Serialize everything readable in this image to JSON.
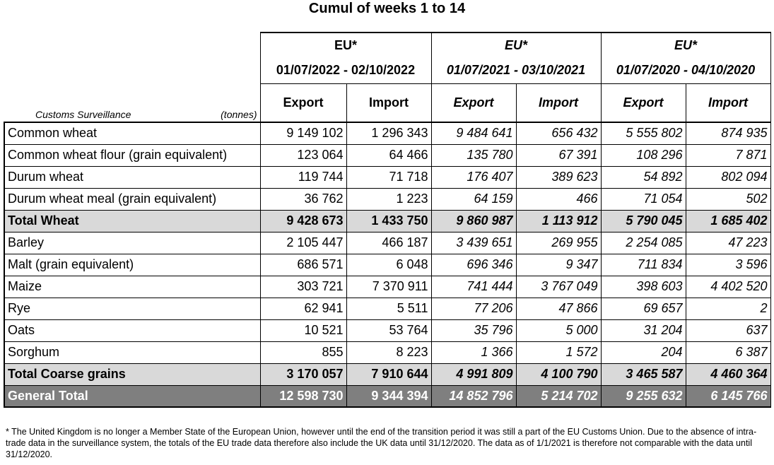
{
  "title": "Cumul of weeks 1 to 14",
  "header": {
    "corner_label": "Customs Surveillance",
    "corner_unit": "(tonnes)",
    "groups": [
      {
        "region": "EU*",
        "period": "01/07/2022 - 02/10/2022"
      },
      {
        "region": "EU*",
        "period": "01/07/2021 - 03/10/2021"
      },
      {
        "region": "EU*",
        "period": "01/07/2020 - 04/10/2020"
      }
    ],
    "columns": [
      "Export",
      "Import",
      "Export",
      "Import",
      "Export",
      "Import"
    ]
  },
  "rows": [
    {
      "label": "Common wheat",
      "values": [
        "9 149 102",
        "1 296 343",
        "9 484 641",
        "656 432",
        "5 555 802",
        "874 935"
      ]
    },
    {
      "label": "Common wheat flour (grain equivalent)",
      "values": [
        "123 064",
        "64 466",
        "135 780",
        "67 391",
        "108 296",
        "7 871"
      ]
    },
    {
      "label": "Durum wheat",
      "values": [
        "119 744",
        "71 718",
        "176 407",
        "389 623",
        "54 892",
        "802 094"
      ]
    },
    {
      "label": "Durum wheat meal (grain equivalent)",
      "values": [
        "36 762",
        "1 223",
        "64 159",
        "466",
        "71 054",
        "502"
      ]
    },
    {
      "label": "Total Wheat",
      "values": [
        "9 428 673",
        "1 433 750",
        "9 860 987",
        "1 113 912",
        "5 790 045",
        "1 685 402"
      ]
    },
    {
      "label": "Barley",
      "values": [
        "2 105 447",
        "466 187",
        "3 439 651",
        "269 955",
        "2 254 085",
        "47 223"
      ]
    },
    {
      "label": "Malt (grain equivalent)",
      "values": [
        "686 571",
        "6 048",
        "696 346",
        "9 347",
        "711 834",
        "3 596"
      ]
    },
    {
      "label": "Maize",
      "values": [
        "303 721",
        "7 370 911",
        "741 444",
        "3 767 049",
        "398 603",
        "4 402 520"
      ]
    },
    {
      "label": "Rye",
      "values": [
        "62 941",
        "5 511",
        "77 206",
        "47 866",
        "69 657",
        "2"
      ]
    },
    {
      "label": "Oats",
      "values": [
        "10 521",
        "53 764",
        "35 796",
        "5 000",
        "31 204",
        "637"
      ]
    },
    {
      "label": "Sorghum",
      "values": [
        "855",
        "8 223",
        "1 366",
        "1 572",
        "204",
        "6 387"
      ]
    },
    {
      "label": "Total Coarse grains",
      "values": [
        "3 170 057",
        "7 910 644",
        "4 991 809",
        "4 100 790",
        "3 465 587",
        "4 460 364"
      ]
    },
    {
      "label": "General Total",
      "values": [
        "12 598 730",
        "9 344 394",
        "14 852 796",
        "5 214 702",
        "9 255 632",
        "6 145 766"
      ]
    }
  ],
  "footnote": "* The United Kingdom is no longer a Member State of the European Union, however until the end of the transition period it was still a part of the EU Customs Union. Due to the absence of intra-trade data in the surveillance system, the totals of the EU trade data  therefore also include the UK data until 31/12/2020. The data as of 1/1/2021 is therefore not comparable with the data until 31/12/2020.",
  "colors": {
    "total_row_bg": "#d9d9d9",
    "general_total_bg": "#7f7f7f",
    "general_total_text": "#ffffff"
  }
}
